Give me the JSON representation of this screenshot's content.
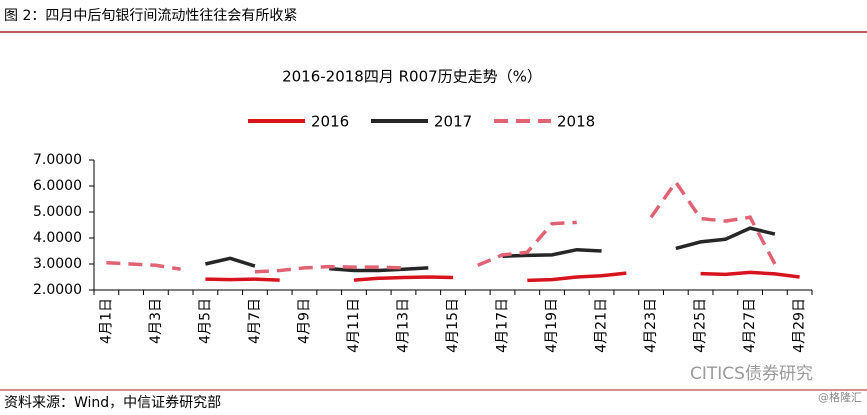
{
  "header": {
    "title": "图 2：四月中后旬银行间流动性往往会有所收紧"
  },
  "chart_data": {
    "type": "line",
    "title": "2016-2018四月 R007历史走势（%）",
    "categories": [
      "4月1日",
      null,
      "4月3日",
      null,
      "4月5日",
      null,
      "4月7日",
      null,
      "4月9日",
      null,
      "4月11日",
      null,
      "4月13日",
      null,
      "4月15日",
      null,
      "4月17日",
      null,
      "4月19日",
      null,
      "4月21日",
      null,
      "4月23日",
      null,
      "4月25日",
      null,
      "4月27日",
      null,
      "4月29日"
    ],
    "series": [
      {
        "name": "2016",
        "color": "#d7141e",
        "dashed": false,
        "values": [
          null,
          null,
          null,
          null,
          2.42,
          2.4,
          2.42,
          2.38,
          null,
          null,
          2.38,
          2.45,
          2.48,
          2.5,
          2.48,
          null,
          null,
          2.37,
          2.4,
          2.5,
          2.55,
          2.65,
          null,
          null,
          2.63,
          2.6,
          2.68,
          2.62,
          2.5
        ]
      },
      {
        "name": "2017",
        "color": "#262626",
        "dashed": false,
        "values": [
          null,
          null,
          null,
          null,
          3.0,
          3.22,
          2.92,
          null,
          null,
          2.82,
          2.75,
          2.75,
          2.8,
          2.85,
          null,
          null,
          3.3,
          3.33,
          3.35,
          3.55,
          3.5,
          null,
          null,
          3.6,
          3.85,
          3.95,
          4.38,
          4.15,
          null
        ]
      },
      {
        "name": "2018",
        "color": "#e06374",
        "dashed": true,
        "values": [
          3.05,
          3.0,
          2.95,
          2.8,
          null,
          null,
          2.7,
          2.75,
          2.85,
          2.9,
          2.88,
          2.88,
          2.85,
          null,
          null,
          2.95,
          3.35,
          3.45,
          4.55,
          4.6,
          null,
          null,
          4.8,
          6.15,
          4.75,
          4.65,
          4.8,
          3.0,
          null
        ]
      }
    ],
    "ylim": [
      2,
      7
    ],
    "yticks": [
      {
        "value": 2,
        "label": "2.0000"
      },
      {
        "value": 3,
        "label": "3.0000"
      },
      {
        "value": 4,
        "label": "4.0000"
      },
      {
        "value": 5,
        "label": "5.0000"
      },
      {
        "value": 6,
        "label": "6.0000"
      },
      {
        "value": 7,
        "label": "7.0000"
      }
    ],
    "grid": false,
    "legend": "top"
  },
  "footer": {
    "source": "资料来源：Wind，中信证券研究部",
    "watermark": "CITICS债券研究",
    "credit": "@格隆汇"
  }
}
